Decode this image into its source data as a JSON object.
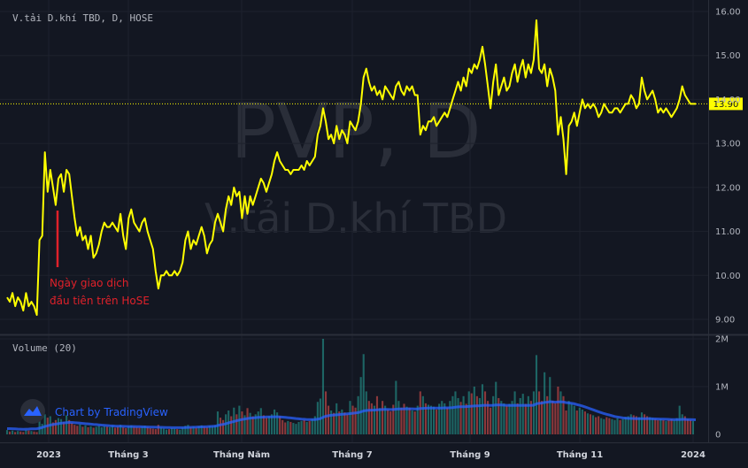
{
  "chart_data": {
    "type": "line",
    "header": "V.tải D.khí TBD, D, HOSE",
    "watermark_ticker": "PVP, D",
    "watermark_name": "V.tải D.khí TBD",
    "last_price": "13.90",
    "price_ticks": [
      "16.00",
      "15.00",
      "14.00",
      "13.00",
      "12.00",
      "11.00",
      "10.00",
      "9.00"
    ],
    "price_range": [
      8.9,
      16.15
    ],
    "volume_label": "Volume (20)",
    "volume_ticks": [
      "2M",
      "1M",
      "0"
    ],
    "volume_range": [
      0,
      2000000
    ],
    "x_labels": [
      "2023",
      "Tháng 3",
      "Tháng Năm",
      "Tháng 7",
      "Tháng 9",
      "Tháng 11",
      "2024"
    ],
    "annotation": [
      "Ngày giao dịch",
      "đầu tiên trên HoSE"
    ],
    "brand": "Chart by TradingView",
    "colors": {
      "price_line": "#ffff00",
      "volume_up": "#26a69a",
      "volume_down": "#ef5350",
      "volume_ma": "#2962ff",
      "annotation": "#e0212a",
      "background": "#131722"
    },
    "price_series": [
      9.5,
      9.4,
      9.6,
      9.3,
      9.5,
      9.4,
      9.2,
      9.6,
      9.3,
      9.4,
      9.3,
      9.1,
      10.8,
      10.9,
      12.8,
      11.9,
      12.4,
      12.0,
      11.6,
      12.2,
      12.3,
      11.9,
      12.4,
      12.3,
      11.8,
      11.3,
      10.9,
      11.1,
      10.8,
      10.9,
      10.6,
      10.9,
      10.4,
      10.5,
      10.7,
      11.0,
      11.2,
      11.1,
      11.1,
      11.2,
      11.1,
      11.0,
      11.4,
      10.9,
      10.6,
      11.3,
      11.5,
      11.2,
      11.1,
      11.0,
      11.2,
      11.3,
      11.0,
      10.8,
      10.6,
      10.1,
      9.7,
      10.0,
      10.0,
      10.1,
      10.0,
      10.0,
      10.1,
      10.0,
      10.1,
      10.3,
      10.8,
      11.0,
      10.6,
      10.8,
      10.7,
      10.9,
      11.1,
      10.9,
      10.5,
      10.7,
      10.8,
      11.2,
      11.4,
      11.2,
      11.0,
      11.5,
      11.8,
      11.6,
      12.0,
      11.8,
      11.9,
      11.3,
      11.8,
      11.4,
      11.8,
      11.6,
      11.8,
      12.0,
      12.2,
      12.1,
      11.9,
      12.1,
      12.3,
      12.6,
      12.8,
      12.6,
      12.5,
      12.4,
      12.4,
      12.3,
      12.4,
      12.4,
      12.4,
      12.5,
      12.4,
      12.6,
      12.5,
      12.6,
      12.7,
      13.2,
      13.4,
      13.8,
      13.5,
      13.1,
      13.2,
      13.0,
      13.4,
      13.1,
      13.3,
      13.2,
      13.0,
      13.5,
      13.4,
      13.3,
      13.5,
      13.9,
      14.5,
      14.7,
      14.4,
      14.2,
      14.3,
      14.1,
      14.2,
      14.0,
      14.3,
      14.2,
      14.1,
      14.0,
      14.3,
      14.4,
      14.2,
      14.1,
      14.3,
      14.2,
      14.3,
      14.1,
      14.1,
      13.2,
      13.4,
      13.3,
      13.5,
      13.5,
      13.6,
      13.4,
      13.5,
      13.6,
      13.7,
      13.6,
      13.8,
      14.0,
      14.2,
      14.4,
      14.2,
      14.5,
      14.3,
      14.7,
      14.6,
      14.8,
      14.7,
      14.9,
      15.2,
      14.8,
      14.3,
      13.8,
      14.4,
      14.8,
      14.1,
      14.3,
      14.5,
      14.2,
      14.3,
      14.6,
      14.8,
      14.4,
      14.7,
      14.9,
      14.5,
      14.8,
      14.6,
      14.9,
      15.8,
      14.7,
      14.6,
      14.8,
      14.3,
      14.7,
      14.5,
      14.2,
      13.2,
      13.6,
      13.1,
      12.3,
      13.4,
      13.5,
      13.7,
      13.4,
      13.7,
      14.0,
      13.8,
      13.9,
      13.8,
      13.9,
      13.8,
      13.6,
      13.7,
      13.9,
      13.8,
      13.7,
      13.7,
      13.8,
      13.8,
      13.7,
      13.8,
      13.9,
      13.9,
      14.1,
      14.0,
      13.8,
      13.9,
      14.5,
      14.2,
      14.0,
      14.1,
      14.2,
      14.0,
      13.7,
      13.8,
      13.7,
      13.8,
      13.7,
      13.6,
      13.7,
      13.8,
      14.0,
      14.3,
      14.1,
      14.0,
      13.9,
      13.9,
      13.9
    ],
    "volume_series": [
      90000,
      60000,
      80000,
      50000,
      70000,
      60000,
      50000,
      90000,
      80000,
      70000,
      60000,
      50000,
      280000,
      220000,
      420000,
      350000,
      380000,
      250000,
      300000,
      340000,
      320000,
      260000,
      400000,
      300000,
      240000,
      200000,
      180000,
      210000,
      160000,
      190000,
      150000,
      170000,
      140000,
      160000,
      180000,
      150000,
      170000,
      160000,
      150000,
      180000,
      140000,
      160000,
      200000,
      150000,
      130000,
      170000,
      190000,
      160000,
      150000,
      140000,
      160000,
      180000,
      150000,
      130000,
      120000,
      110000,
      200000,
      140000,
      120000,
      100000,
      110000,
      130000,
      120000,
      110000,
      100000,
      140000,
      180000,
      200000,
      150000,
      160000,
      140000,
      170000,
      190000,
      160000,
      150000,
      180000,
      170000,
      190000,
      480000,
      350000,
      300000,
      420000,
      500000,
      380000,
      560000,
      420000,
      600000,
      480000,
      400000,
      550000,
      450000,
      380000,
      420000,
      480000,
      550000,
      400000,
      350000,
      380000,
      420000,
      520000,
      460000,
      380000,
      300000,
      250000,
      280000,
      260000,
      240000,
      220000,
      260000,
      280000,
      300000,
      260000,
      280000,
      320000,
      380000,
      680000,
      750000,
      2000000,
      900000,
      600000,
      500000,
      450000,
      650000,
      480000,
      520000,
      460000,
      420000,
      700000,
      600000,
      560000,
      800000,
      1200000,
      1680000,
      900000,
      700000,
      650000,
      600000,
      800000,
      550000,
      700000,
      600000,
      520000,
      480000,
      620000,
      1120000,
      700000,
      560000,
      640000,
      580000,
      560000,
      500000,
      480000,
      600000,
      900000,
      800000,
      650000,
      620000,
      600000,
      580000,
      520000,
      640000,
      700000,
      650000,
      560000,
      700000,
      800000,
      900000,
      760000,
      680000,
      800000,
      640000,
      900000,
      860000,
      1000000,
      800000,
      760000,
      1050000,
      900000,
      700000,
      560000,
      800000,
      1100000,
      760000,
      700000,
      650000,
      600000,
      640000,
      700000,
      900000,
      650000,
      760000,
      850000,
      640000,
      800000,
      700000,
      900000,
      1660000,
      900000,
      700000,
      1300000,
      800000,
      1200000,
      700000,
      650000,
      1000000,
      900000,
      800000,
      500000,
      700000,
      640000,
      600000,
      500000,
      560000,
      520000,
      480000,
      440000,
      420000,
      400000,
      360000,
      380000,
      340000,
      320000,
      360000,
      340000,
      320000,
      300000,
      340000,
      300000,
      320000,
      360000,
      380000,
      420000,
      400000,
      380000,
      360000,
      460000,
      420000,
      380000,
      360000,
      340000,
      320000,
      300000,
      320000,
      300000,
      280000,
      300000,
      320000,
      300000,
      340000,
      600000,
      420000,
      380000,
      320000,
      300000,
      280000
    ],
    "volume_ma_series": [
      120000,
      120000,
      118000,
      115000,
      112000,
      110000,
      108000,
      110000,
      112000,
      114000,
      116000,
      118000,
      130000,
      145000,
      165000,
      180000,
      195000,
      205000,
      215000,
      225000,
      235000,
      240000,
      245000,
      250000,
      250000,
      245000,
      240000,
      235000,
      230000,
      225000,
      220000,
      215000,
      210000,
      205000,
      200000,
      195000,
      190000,
      185000,
      180000,
      178000,
      175000,
      172000,
      170000,
      168000,
      166000,
      165000,
      165000,
      164000,
      163000,
      162000,
      160000,
      158000,
      156000,
      154000,
      152000,
      150000,
      150000,
      148000,
      146000,
      144000,
      142000,
      140000,
      140000,
      140000,
      140000,
      141000,
      143000,
      146000,
      148000,
      150000,
      152000,
      155000,
      158000,
      160000,
      162000,
      165000,
      168000,
      170000,
      185000,
      200000,
      210000,
      222000,
      240000,
      255000,
      270000,
      285000,
      300000,
      312000,
      322000,
      332000,
      340000,
      345000,
      350000,
      355000,
      360000,
      362000,
      364000,
      365000,
      366000,
      368000,
      368000,
      366000,
      362000,
      356000,
      350000,
      344000,
      338000,
      332000,
      326000,
      320000,
      316000,
      312000,
      310000,
      310000,
      312000,
      318000,
      330000,
      360000,
      380000,
      390000,
      400000,
      405000,
      410000,
      415000,
      420000,
      425000,
      430000,
      436000,
      442000,
      448000,
      455000,
      470000,
      490000,
      500000,
      505000,
      508000,
      510000,
      515000,
      518000,
      520000,
      522000,
      522000,
      520000,
      520000,
      528000,
      532000,
      534000,
      535000,
      536000,
      536000,
      535000,
      534000,
      534000,
      540000,
      545000,
      548000,
      550000,
      552000,
      552000,
      550000,
      550000,
      552000,
      555000,
      556000,
      558000,
      562000,
      570000,
      575000,
      578000,
      580000,
      582000,
      586000,
      590000,
      595000,
      598000,
      600000,
      605000,
      610000,
      610000,
      608000,
      610000,
      615000,
      616000,
      615000,
      612000,
      610000,
      608000,
      608000,
      610000,
      608000,
      608000,
      610000,
      608000,
      610000,
      608000,
      612000,
      640000,
      650000,
      655000,
      670000,
      675000,
      685000,
      680000,
      675000,
      680000,
      680000,
      678000,
      665000,
      660000,
      650000,
      640000,
      625000,
      610000,
      595000,
      575000,
      555000,
      535000,
      515000,
      495000,
      475000,
      455000,
      435000,
      420000,
      405000,
      390000,
      375000,
      365000,
      355000,
      345000,
      340000,
      336000,
      334000,
      332000,
      330000,
      328000,
      328000,
      330000,
      330000,
      328000,
      326000,
      324000,
      322000,
      320000,
      318000,
      316000,
      314000,
      312000,
      310000,
      310000,
      312000,
      314000,
      314000,
      312000,
      310000,
      308000,
      306000
    ]
  }
}
